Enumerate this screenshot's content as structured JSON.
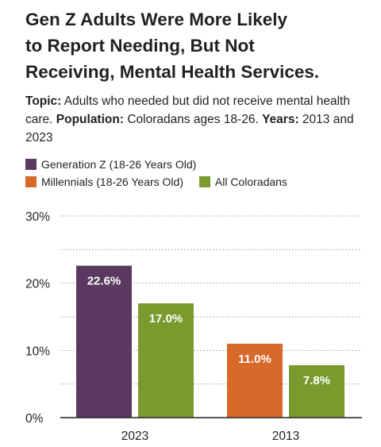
{
  "title_lines": [
    "Gen Z Adults Were More Likely",
    "to Report Needing, But Not",
    "Receiving, Mental Health Services."
  ],
  "subtitle": {
    "topic_label": "Topic:",
    "topic_text": " Adults who needed but did not receive mental health care. ",
    "population_label": "Population:",
    "population_text": " Coloradans ages 18-26. ",
    "years_label": "Years:",
    "years_text": " 2013 and 2023"
  },
  "colors": {
    "gen_z": "#5a3860",
    "millennials": "#d9692a",
    "all_coloradans": "#7a9a2e",
    "grid": "#9a9a9a",
    "axis": "#231f20"
  },
  "chart_data": {
    "type": "bar",
    "categories": [
      "2023",
      "2013"
    ],
    "series": [
      {
        "name": "Generation Z (18-26 Years Old)",
        "color_key": "gen_z"
      },
      {
        "name": "Millennials (18-26 Years Old)",
        "color_key": "millennials"
      },
      {
        "name": "All Coloradans",
        "color_key": "all_coloradans"
      }
    ],
    "bars": [
      {
        "category": "2023",
        "series": "Generation Z (18-26 Years Old)",
        "value": 22.6,
        "label": "22.6%"
      },
      {
        "category": "2023",
        "series": "All Coloradans",
        "value": 17.0,
        "label": "17.0%"
      },
      {
        "category": "2013",
        "series": "Millennials (18-26 Years Old)",
        "value": 11.0,
        "label": "11.0%"
      },
      {
        "category": "2013",
        "series": "All Coloradans",
        "value": 7.8,
        "label": "7.8%"
      }
    ],
    "yticks": [
      {
        "value": 0,
        "label": "0%"
      },
      {
        "value": 10,
        "label": "10%"
      },
      {
        "value": 20,
        "label": "20%"
      },
      {
        "value": 30,
        "label": "30%"
      }
    ],
    "ylim": [
      0,
      30
    ],
    "grid": true,
    "legend_position": "top-left"
  }
}
